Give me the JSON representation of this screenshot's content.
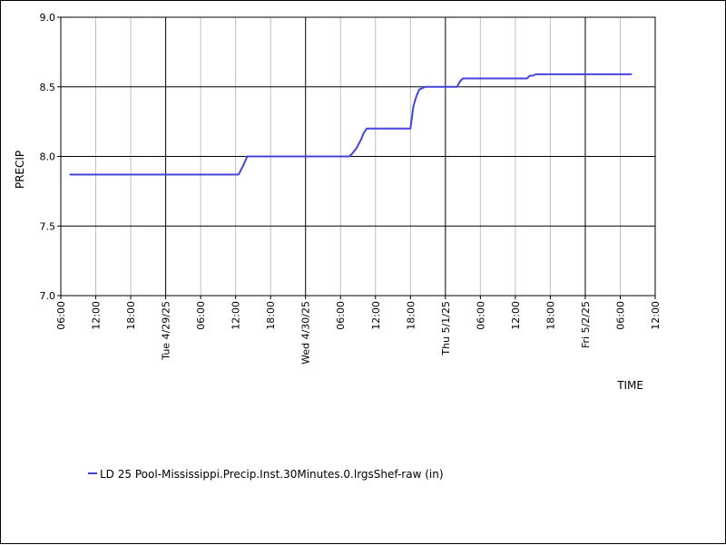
{
  "chart_data": {
    "type": "line",
    "xlabel": "TIME",
    "ylabel": "PRECIP",
    "ylim": [
      7.0,
      9.0
    ],
    "y_ticks": [
      "7.0",
      "7.5",
      "8.0",
      "8.5",
      "9.0"
    ],
    "y_tick_values": [
      7.0,
      7.5,
      8.0,
      8.5,
      9.0
    ],
    "xlim": [
      "2025-04-28 06:00",
      "2025-05-02 12:00"
    ],
    "x_ticks": [
      {
        "time": "2025-04-28 06:00",
        "label": "06:00",
        "major": false
      },
      {
        "time": "2025-04-28 12:00",
        "label": "12:00",
        "major": false
      },
      {
        "time": "2025-04-28 18:00",
        "label": "18:00",
        "major": false
      },
      {
        "time": "2025-04-29 00:00",
        "label": "Tue 4/29/25",
        "major": true
      },
      {
        "time": "2025-04-29 06:00",
        "label": "06:00",
        "major": false
      },
      {
        "time": "2025-04-29 12:00",
        "label": "12:00",
        "major": false
      },
      {
        "time": "2025-04-29 18:00",
        "label": "18:00",
        "major": false
      },
      {
        "time": "2025-04-30 00:00",
        "label": "Wed 4/30/25",
        "major": true
      },
      {
        "time": "2025-04-30 06:00",
        "label": "06:00",
        "major": false
      },
      {
        "time": "2025-04-30 12:00",
        "label": "12:00",
        "major": false
      },
      {
        "time": "2025-04-30 18:00",
        "label": "18:00",
        "major": false
      },
      {
        "time": "2025-05-01 00:00",
        "label": "Thu 5/1/25",
        "major": true
      },
      {
        "time": "2025-05-01 06:00",
        "label": "06:00",
        "major": false
      },
      {
        "time": "2025-05-01 12:00",
        "label": "12:00",
        "major": false
      },
      {
        "time": "2025-05-01 18:00",
        "label": "18:00",
        "major": false
      },
      {
        "time": "2025-05-02 00:00",
        "label": "Fri 5/2/25",
        "major": true
      },
      {
        "time": "2025-05-02 06:00",
        "label": "06:00",
        "major": false
      },
      {
        "time": "2025-05-02 12:00",
        "label": "12:00",
        "major": false
      }
    ],
    "grid": true,
    "legend_position": "bottom-left",
    "series": [
      {
        "name": "LD 25 Pool-Mississippi.Precip.Inst.30Minutes.0.lrgsShef-raw (in)",
        "color": "#4444dd",
        "x": [
          "2025-04-28 07:30",
          "2025-04-29 06:00",
          "2025-04-29 12:30",
          "2025-04-29 13:15",
          "2025-04-29 14:00",
          "2025-04-30 00:00",
          "2025-04-30 07:30",
          "2025-04-30 08:00",
          "2025-04-30 08:45",
          "2025-04-30 09:30",
          "2025-04-30 10:00",
          "2025-04-30 10:30",
          "2025-04-30 12:00",
          "2025-04-30 18:00",
          "2025-04-30 18:30",
          "2025-04-30 19:00",
          "2025-04-30 19:30",
          "2025-04-30 20:00",
          "2025-04-30 20:30",
          "2025-05-01 00:00",
          "2025-05-01 02:00",
          "2025-05-01 02:30",
          "2025-05-01 03:00",
          "2025-05-01 12:00",
          "2025-05-01 14:00",
          "2025-05-01 14:30",
          "2025-05-01 15:00",
          "2025-05-01 15:30",
          "2025-05-02 06:00",
          "2025-05-02 08:00"
        ],
        "y": [
          7.87,
          7.87,
          7.87,
          7.93,
          8.0,
          8.0,
          8.0,
          8.02,
          8.06,
          8.12,
          8.17,
          8.2,
          8.2,
          8.2,
          8.36,
          8.43,
          8.48,
          8.49,
          8.5,
          8.5,
          8.5,
          8.54,
          8.56,
          8.56,
          8.56,
          8.58,
          8.58,
          8.59,
          8.59,
          8.59
        ]
      }
    ]
  }
}
